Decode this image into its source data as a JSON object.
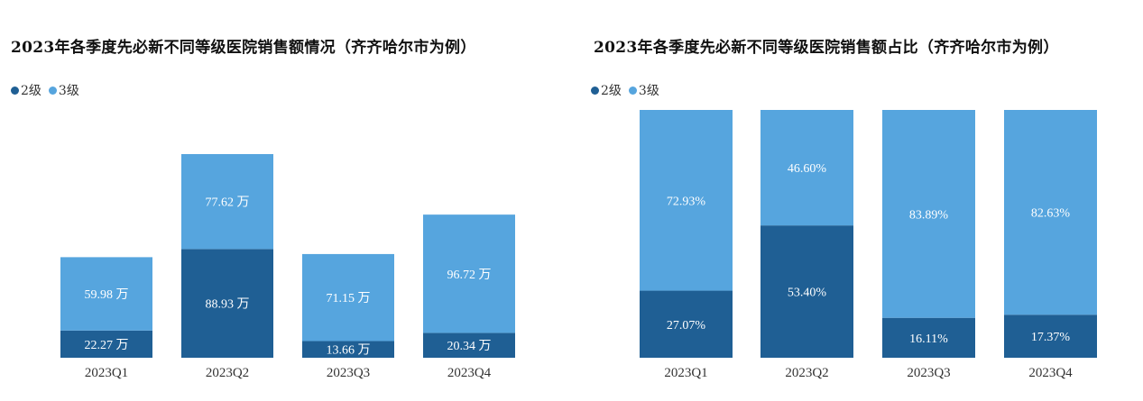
{
  "colors": {
    "level2": "#1f5f94",
    "level3": "#56a5de"
  },
  "chart_data": [
    {
      "type": "bar",
      "stacked": true,
      "title": "2023年各季度先必新不同等级医院销售额情况（齐齐哈尔市为例）",
      "legend": [
        "2级",
        "3级"
      ],
      "categories": [
        "2023Q1",
        "2023Q2",
        "2023Q3",
        "2023Q4"
      ],
      "unit": "万",
      "series": [
        {
          "name": "2级",
          "values": [
            22.27,
            88.93,
            13.66,
            20.34
          ],
          "labels": [
            "22.27 万",
            "88.93 万",
            "13.66 万",
            "20.34 万"
          ]
        },
        {
          "name": "3级",
          "values": [
            59.98,
            77.62,
            71.15,
            96.72
          ],
          "labels": [
            "59.98 万",
            "77.62 万",
            "71.15 万",
            "96.72 万"
          ]
        }
      ]
    },
    {
      "type": "bar",
      "stacked": true,
      "percent": true,
      "title": "2023年各季度先必新不同等级医院销售额占比（齐齐哈尔市为例）",
      "legend": [
        "2级",
        "3级"
      ],
      "categories": [
        "2023Q1",
        "2023Q2",
        "2023Q3",
        "2023Q4"
      ],
      "series": [
        {
          "name": "2级",
          "values": [
            27.07,
            53.4,
            16.11,
            17.37
          ],
          "labels": [
            "27.07%",
            "53.40%",
            "16.11%",
            "17.37%"
          ]
        },
        {
          "name": "3级",
          "values": [
            72.93,
            46.6,
            83.89,
            82.63
          ],
          "labels": [
            "72.93%",
            "46.60%",
            "83.89%",
            "82.63%"
          ]
        }
      ]
    }
  ]
}
